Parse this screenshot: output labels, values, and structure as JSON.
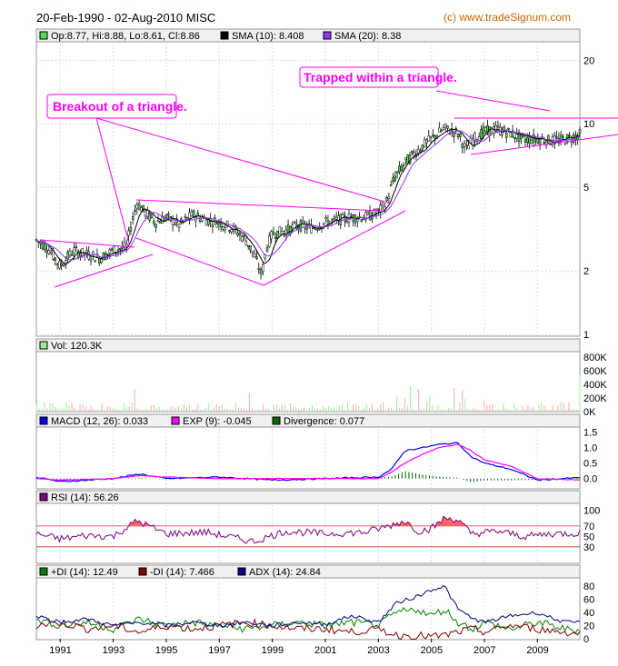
{
  "title": "20-Feb-1990 - 02-Aug-2010 MISC",
  "copyright": "(c) www.tradeSignum.com",
  "colors": {
    "price_legend": "#55dd55",
    "sma10": "#000000",
    "sma20": "#9933ff",
    "volume": "#99ee99",
    "macd": "#0000ff",
    "exp": "#ff00ff",
    "divergence": "#006600",
    "rsi": "#800080",
    "plus_di": "#008000",
    "minus_di": "#800000",
    "adx": "#000080",
    "annotation": "#ff00ff"
  },
  "legends": {
    "price": "Op:8.77, Hi:8.88, Lo:8.61, Cl:8.86",
    "sma10": "SMA (10): 8.408",
    "sma20": "SMA (20): 8.38",
    "volume": "Vol: 120.3K",
    "macd": "MACD (12, 26): 0.033",
    "exp": "EXP (9): -0.045",
    "divergence": "Divergence: 0.077",
    "rsi": "RSI (14): 56.26",
    "plus_di": "+DI (14): 12.49",
    "minus_di": "-DI (14): 7.466",
    "adx": "ADX (14): 24.84"
  },
  "annotations": {
    "breakout": "Breakout of a triangle.",
    "trapped": "Trapped within a triangle."
  },
  "chart_data": [
    {
      "type": "candlestick",
      "name": "price",
      "yscale": "log",
      "ylim": [
        1,
        24
      ],
      "yticks": [
        1,
        2,
        5,
        10,
        20
      ],
      "xticks": [
        "1991",
        "1993",
        "1995",
        "1997",
        "1999",
        "2001",
        "2003",
        "2005",
        "2007",
        "2009"
      ],
      "x": [
        1990.1,
        1990.5,
        1991.0,
        1991.5,
        1992.0,
        1992.5,
        1993.0,
        1993.5,
        1993.9,
        1994.2,
        1994.6,
        1995.0,
        1995.5,
        1996.0,
        1996.5,
        1997.0,
        1997.5,
        1998.0,
        1998.3,
        1998.6,
        1998.8,
        1999.0,
        1999.5,
        2000.0,
        2000.5,
        2001.0,
        2001.5,
        2002.0,
        2002.5,
        2003.0,
        2003.3,
        2003.6,
        2004.0,
        2004.5,
        2005.0,
        2005.5,
        2006.0,
        2006.3,
        2006.6,
        2007.0,
        2007.5,
        2008.0,
        2008.5,
        2009.0,
        2009.5,
        2010.0,
        2010.6
      ],
      "close": [
        2.8,
        2.6,
        2.1,
        2.5,
        2.4,
        2.3,
        2.5,
        2.6,
        4.2,
        3.8,
        3.4,
        3.6,
        3.3,
        3.7,
        3.5,
        3.4,
        3.2,
        2.8,
        2.4,
        1.9,
        2.6,
        3.0,
        3.1,
        3.3,
        3.2,
        3.4,
        3.5,
        3.6,
        3.6,
        3.8,
        4.2,
        5.5,
        6.5,
        7.5,
        8.5,
        9.5,
        9.0,
        7.5,
        8.5,
        9.2,
        9.4,
        9.0,
        8.4,
        8.5,
        8.3,
        8.4,
        8.86
      ]
    },
    {
      "type": "bar",
      "name": "volume",
      "ylim": [
        0,
        850000
      ],
      "yticks": [
        "0K",
        "200K",
        "400K",
        "600K",
        "800K"
      ]
    },
    {
      "type": "line",
      "name": "macd",
      "ylim": [
        -0.3,
        1.6
      ],
      "yticks": [
        "0.0",
        "0.5",
        "1.0",
        "1.5"
      ],
      "x": [
        1990.1,
        1991.0,
        1993.0,
        1994.0,
        1995.0,
        1997.0,
        1999.0,
        2001.0,
        2003.0,
        2003.5,
        2004.0,
        2004.7,
        2005.3,
        2006.0,
        2006.5,
        2007.0,
        2008.0,
        2009.0,
        2010.6
      ],
      "series": [
        {
          "name": "MACD (12, 26)",
          "values": [
            0.05,
            -0.1,
            0.0,
            0.15,
            0.0,
            0.05,
            -0.05,
            0.0,
            0.05,
            0.3,
            0.9,
            1.0,
            1.1,
            1.15,
            0.7,
            0.5,
            0.3,
            -0.05,
            0.03
          ]
        },
        {
          "name": "EXP (9)",
          "values": [
            0.0,
            -0.05,
            0.0,
            0.1,
            0.05,
            0.0,
            0.0,
            0.0,
            0.0,
            0.2,
            0.5,
            0.8,
            1.0,
            1.1,
            0.9,
            0.6,
            0.4,
            0.0,
            -0.045
          ]
        }
      ]
    },
    {
      "type": "line",
      "name": "rsi",
      "ylim": [
        0,
        110
      ],
      "yticks": [
        "30",
        "50",
        "70",
        "100"
      ],
      "x": [
        1990.1,
        1991.0,
        1992.0,
        1993.0,
        1993.9,
        1995.0,
        1996.5,
        1998.3,
        1999.5,
        2001.0,
        2002.5,
        2003.4,
        2004.0,
        2004.5,
        2005.0,
        2005.5,
        2006.0,
        2006.5,
        2007.5,
        2008.5,
        2009.5,
        2010.6
      ],
      "series": [
        {
          "name": "RSI (14)",
          "values": [
            55,
            45,
            52,
            50,
            80,
            55,
            58,
            40,
            60,
            55,
            58,
            70,
            80,
            60,
            65,
            85,
            82,
            55,
            60,
            50,
            55,
            56.26
          ]
        }
      ]
    },
    {
      "type": "line",
      "name": "dmi",
      "ylim": [
        0,
        90
      ],
      "yticks": [
        "0",
        "20",
        "40",
        "60",
        "80"
      ],
      "x": [
        1990.1,
        1991.0,
        1992.0,
        1993.0,
        1994.0,
        1995.0,
        1996.0,
        1997.0,
        1998.0,
        1999.0,
        2000.0,
        2001.0,
        2002.0,
        2003.0,
        2003.7,
        2004.5,
        2005.0,
        2005.5,
        2006.0,
        2006.6,
        2007.0,
        2008.0,
        2009.0,
        2010.0,
        2010.6
      ],
      "series": [
        {
          "name": "+DI (14)",
          "values": [
            30,
            20,
            25,
            15,
            30,
            20,
            25,
            20,
            15,
            20,
            25,
            20,
            25,
            20,
            40,
            45,
            35,
            45,
            25,
            15,
            25,
            15,
            25,
            15,
            12.49
          ]
        },
        {
          "name": "-DI (14)",
          "values": [
            20,
            25,
            15,
            20,
            10,
            20,
            15,
            20,
            25,
            20,
            15,
            15,
            10,
            15,
            5,
            5,
            3,
            5,
            10,
            15,
            10,
            20,
            15,
            10,
            7.466
          ]
        },
        {
          "name": "ADX (14)",
          "values": [
            35,
            25,
            30,
            20,
            25,
            20,
            25,
            20,
            25,
            20,
            25,
            22,
            35,
            25,
            55,
            65,
            75,
            80,
            45,
            30,
            25,
            35,
            40,
            25,
            24.84
          ]
        }
      ]
    }
  ]
}
